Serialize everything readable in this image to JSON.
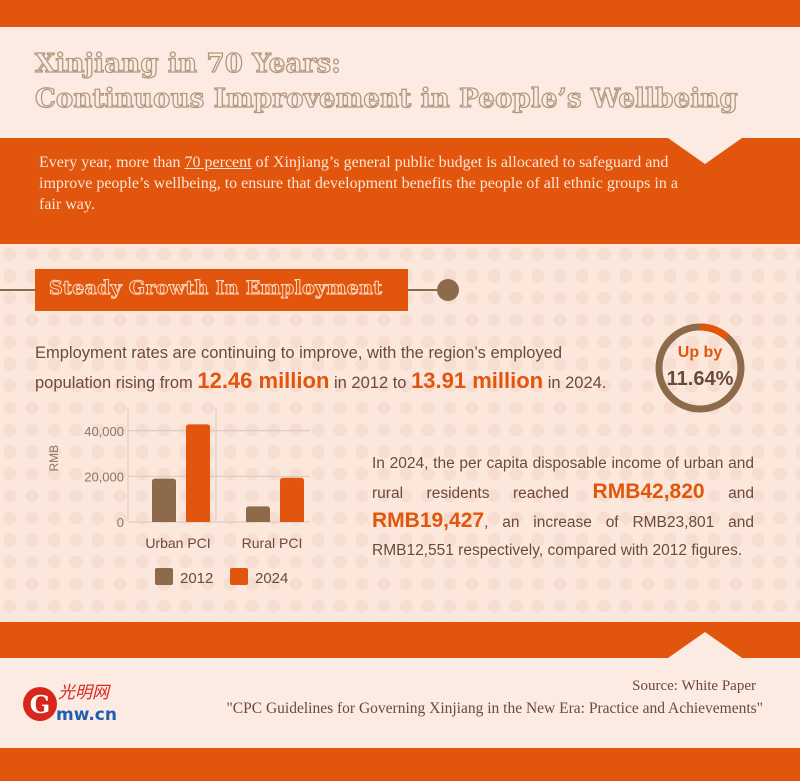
{
  "header": {
    "title_line1": "Xinjiang in 70 Years:",
    "title_line2": "Continuous Improvement in People’s Wellbeing"
  },
  "intro": {
    "before": "Every year, more than ",
    "highlight": "70 percent",
    "after": " of Xinjiang’s general public budget is allocated to safeguard and improve people’s wellbeing, to ensure that development benefits the people of all ethnic groups in a fair way."
  },
  "section": {
    "title": "Steady Growth In Employment"
  },
  "employment": {
    "part1": "Employment rates are continuing to improve, with the region’s employed population rising from ",
    "value2012": "12.46 million",
    "part2": " in 2012 to ",
    "value2024": "13.91 million",
    "part3": " in 2024."
  },
  "growth_badge": {
    "label": "Up by",
    "value": "11.64%",
    "fraction": 0.1164,
    "ring_color": "#8d6b4a",
    "accent_color": "#e2550c"
  },
  "chart_data": {
    "type": "bar",
    "categories": [
      "Urban PCI",
      "Rural PCI"
    ],
    "series": [
      {
        "name": "2012",
        "values": [
          19019,
          6876
        ],
        "color": "#8d6b4a"
      },
      {
        "name": "2024",
        "values": [
          42820,
          19427
        ],
        "color": "#e2550c"
      }
    ],
    "ylabel": "RMB",
    "ylim": [
      0,
      50000
    ],
    "yticks": [
      "0",
      "20,000",
      "40,000"
    ],
    "ytick_values": [
      0,
      20000,
      40000
    ],
    "grid": true,
    "legend": "bottom"
  },
  "pci": {
    "part1": "In 2024, the per capita disposable income of urban and rural residents reached ",
    "urban": "RMB42,820",
    "part2": " and ",
    "rural": "RMB19,427",
    "part3": ", an increase of RMB23,801 and RMB12,551 respectively, compared with 2012 figures."
  },
  "footer": {
    "source_line1": "Source: White Paper",
    "source_line2": "\"CPC Guidelines for Governing Xinjiang in the New Era: Practice and Achievements\"",
    "logo_text": "mw.cn",
    "logo_chinese": "光明网",
    "logo_g": "G"
  },
  "colors": {
    "brand_orange": "#e2550c",
    "brown": "#8d6b4a",
    "cream": "#fcebe2"
  }
}
